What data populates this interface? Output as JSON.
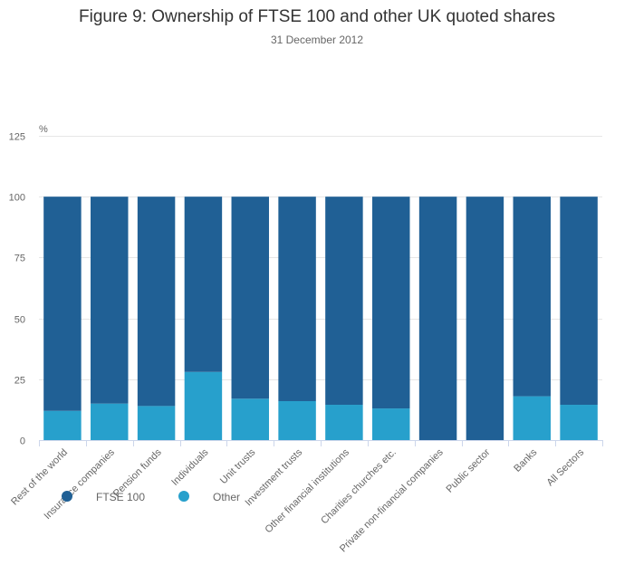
{
  "chart_data": {
    "type": "bar",
    "stacked": true,
    "title": "Figure 9: Ownership of FTSE 100 and other UK quoted shares",
    "subtitle": "31 December 2012",
    "ylabel": "%",
    "xlabel": "",
    "ylim": [
      0,
      125
    ],
    "yticks": [
      0,
      25,
      50,
      75,
      100,
      125
    ],
    "categories": [
      "Rest of the world",
      "Insurance companies",
      "Pension funds",
      "Individuals",
      "Unit trusts",
      "Investment trusts",
      "Other financial institutions",
      "Charities churches etc.",
      "Private non-financial companies",
      "Public sector",
      "Banks",
      "All Sectors"
    ],
    "series": [
      {
        "name": "Other",
        "color": "#27a0cc",
        "values": [
          12,
          15,
          14,
          28,
          17,
          16,
          14.5,
          13,
          0,
          0,
          18,
          14.5
        ]
      },
      {
        "name": "FTSE 100",
        "color": "#206095",
        "values": [
          88,
          85,
          86,
          72,
          83,
          84,
          85.5,
          87,
          100,
          100,
          82,
          85.5
        ]
      }
    ],
    "legend": {
      "position": "bottom-left",
      "items": [
        {
          "label": "FTSE 100",
          "color": "#206095"
        },
        {
          "label": "Other",
          "color": "#27a0cc"
        }
      ]
    },
    "grid": true
  }
}
